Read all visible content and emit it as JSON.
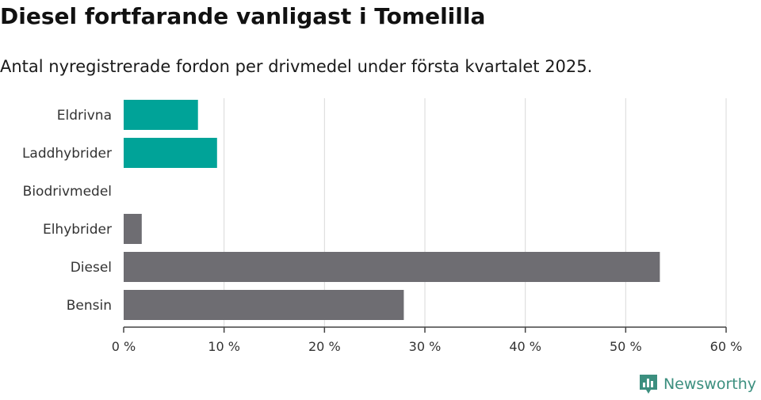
{
  "header": {
    "title": "Diesel fortfarande vanligast i Tomelilla",
    "subtitle": "Antal nyregistrerade fordon per drivmedel under första kvartalet 2025."
  },
  "brand": {
    "name": "Newsworthy",
    "icon": "bar-chart-speech-bubble-icon",
    "color": "#3c8f7f"
  },
  "chart_data": {
    "type": "bar",
    "orientation": "horizontal",
    "categories": [
      "Eldrivna",
      "Laddhybrider",
      "Biodrivmedel",
      "Elhybrider",
      "Diesel",
      "Bensin"
    ],
    "values": [
      7.4,
      9.3,
      0,
      1.8,
      53.4,
      27.9
    ],
    "colors": [
      "#00a398",
      "#00a398",
      "#6e6d72",
      "#6e6d72",
      "#6e6d72",
      "#6e6d72"
    ],
    "xlim": [
      0,
      60
    ],
    "xticks": [
      0,
      10,
      20,
      30,
      40,
      50,
      60
    ],
    "xtick_labels": [
      "0 %",
      "10 %",
      "20 %",
      "30 %",
      "40 %",
      "50 %",
      "60 %"
    ],
    "grid": "vertical",
    "gridline_color": "#d9d9d9",
    "title": "",
    "xlabel": "",
    "ylabel": ""
  }
}
